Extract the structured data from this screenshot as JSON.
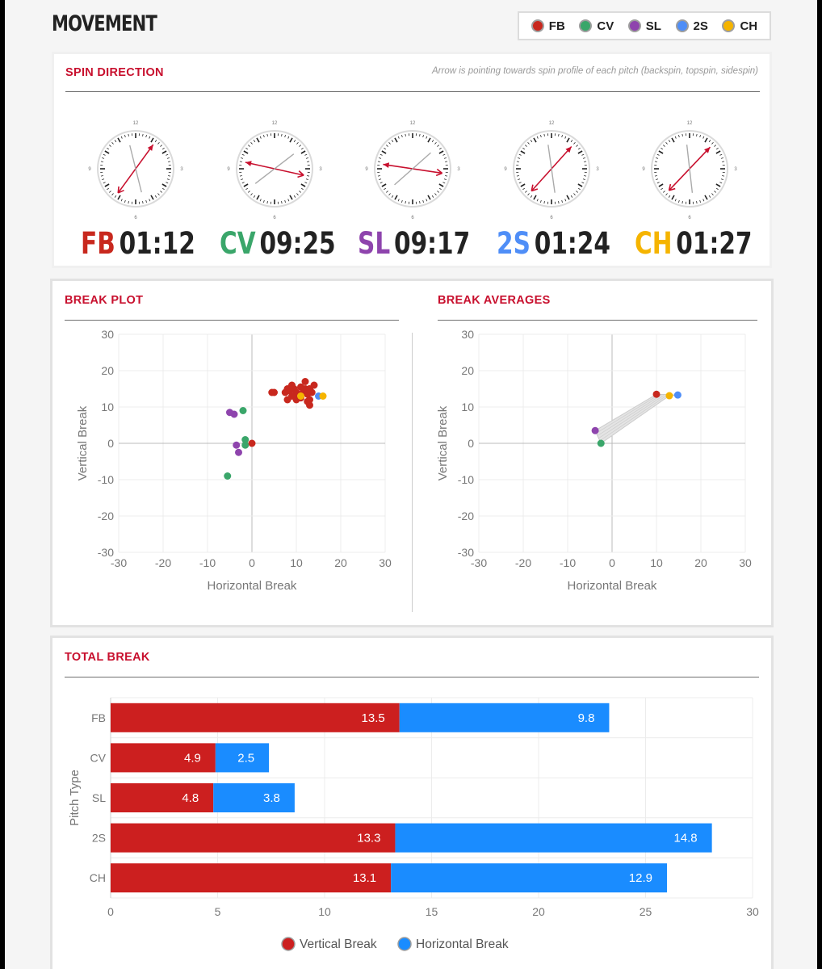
{
  "page": {
    "title": "MOVEMENT"
  },
  "legend": [
    {
      "label": "FB",
      "color": "#c8281e"
    },
    {
      "label": "CV",
      "color": "#3aa66a"
    },
    {
      "label": "SL",
      "color": "#8e44ad"
    },
    {
      "label": "2S",
      "color": "#4f8ef7"
    },
    {
      "label": "CH",
      "color": "#f5b400"
    }
  ],
  "spin": {
    "title": "SPIN DIRECTION",
    "note": "Arrow is pointing towards spin profile of each pitch (backspin, topspin, sidespin)",
    "dial_labels": [
      "12",
      "3",
      "6",
      "9"
    ],
    "clocks": [
      {
        "abbr": "FB",
        "time": "01:12",
        "color": "#c8281e"
      },
      {
        "abbr": "CV",
        "time": "09:25",
        "color": "#3aa66a"
      },
      {
        "abbr": "SL",
        "time": "09:17",
        "color": "#8e44ad"
      },
      {
        "abbr": "2S",
        "time": "01:24",
        "color": "#4f8ef7"
      },
      {
        "abbr": "CH",
        "time": "01:27",
        "color": "#f5b400"
      }
    ]
  },
  "break_plot": {
    "title": "BREAK PLOT"
  },
  "break_avg": {
    "title": "BREAK AVERAGES"
  },
  "total_break": {
    "title": "TOTAL BREAK"
  },
  "chart_data": [
    {
      "id": "break_plot",
      "type": "scatter",
      "xlabel": "Horizontal Break",
      "ylabel": "Vertical Break",
      "xlim": [
        -30,
        30
      ],
      "ylim": [
        -30,
        30
      ],
      "xticks": [
        -30,
        -20,
        -10,
        0,
        10,
        20,
        30
      ],
      "yticks": [
        30,
        20,
        10,
        0,
        -10,
        -20,
        -30
      ],
      "grid": true,
      "series": [
        {
          "name": "FB",
          "color": "#c8281e",
          "points": [
            [
              4.5,
              14
            ],
            [
              5,
              14
            ],
            [
              7.5,
              14
            ],
            [
              8,
              15
            ],
            [
              8.5,
              14.5
            ],
            [
              9,
              16
            ],
            [
              9.5,
              15
            ],
            [
              10,
              14
            ],
            [
              10.5,
              13
            ],
            [
              11,
              15.5
            ],
            [
              11.5,
              14
            ],
            [
              12,
              17
            ],
            [
              12,
              15
            ],
            [
              12.5,
              13.5
            ],
            [
              13,
              12
            ],
            [
              13,
              15
            ],
            [
              13.5,
              14
            ],
            [
              14,
              16
            ],
            [
              9,
              13
            ],
            [
              11,
              12.5
            ],
            [
              12.5,
              11.5
            ],
            [
              13,
              10.5
            ],
            [
              8,
              12
            ],
            [
              10,
              12
            ],
            [
              0,
              0
            ]
          ]
        },
        {
          "name": "CV",
          "color": "#3aa66a",
          "points": [
            [
              -2,
              9
            ],
            [
              -1.5,
              1
            ],
            [
              -1.5,
              -0.5
            ],
            [
              -5.5,
              -9
            ]
          ]
        },
        {
          "name": "SL",
          "color": "#8e44ad",
          "points": [
            [
              -5,
              8.5
            ],
            [
              -4,
              8
            ],
            [
              -3.5,
              -0.5
            ],
            [
              -3,
              -2.5
            ]
          ]
        },
        {
          "name": "2S",
          "color": "#4f8ef7",
          "points": [
            [
              15,
              13
            ]
          ]
        },
        {
          "name": "CH",
          "color": "#f5b400",
          "points": [
            [
              16,
              13
            ],
            [
              11,
              13
            ]
          ]
        }
      ]
    },
    {
      "id": "break_averages",
      "type": "scatter",
      "xlabel": "Horizontal Break",
      "ylabel": "Vertical Break",
      "xlim": [
        -30,
        30
      ],
      "ylim": [
        -30,
        30
      ],
      "xticks": [
        -30,
        -20,
        -10,
        0,
        10,
        20,
        30
      ],
      "yticks": [
        30,
        20,
        10,
        0,
        -10,
        -20,
        -30
      ],
      "grid": true,
      "points": [
        {
          "name": "FB",
          "color": "#c8281e",
          "x": 10,
          "y": 13.5
        },
        {
          "name": "CV",
          "color": "#3aa66a",
          "x": -2.5,
          "y": 0
        },
        {
          "name": "SL",
          "color": "#8e44ad",
          "x": -3.8,
          "y": 3.5
        },
        {
          "name": "2S",
          "color": "#4f8ef7",
          "x": 14.8,
          "y": 13.3
        },
        {
          "name": "CH",
          "color": "#f5b400",
          "x": 12.9,
          "y": 13.1
        }
      ],
      "polygon_order": [
        "FB",
        "2S",
        "CH",
        "CV",
        "SL"
      ]
    },
    {
      "id": "total_break",
      "type": "bar",
      "orientation": "horizontal",
      "stacked": true,
      "categories": [
        "FB",
        "CV",
        "SL",
        "2S",
        "CH"
      ],
      "ylabel": "Pitch Type",
      "xlim": [
        0,
        30
      ],
      "xticks": [
        0,
        5,
        10,
        15,
        20,
        25,
        30
      ],
      "grid": true,
      "legend_position": "bottom",
      "series": [
        {
          "name": "Vertical Break",
          "color": "#cc1f1f",
          "values": [
            13.5,
            4.9,
            4.8,
            13.3,
            13.1
          ]
        },
        {
          "name": "Horizontal Break",
          "color": "#1a8cff",
          "values": [
            9.8,
            2.5,
            3.8,
            14.8,
            12.9
          ]
        }
      ]
    }
  ]
}
